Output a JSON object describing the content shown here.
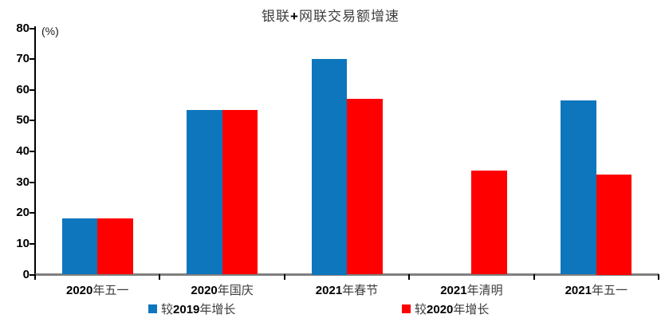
{
  "chart_data": {
    "type": "bar",
    "title": "银联+网联交易额增速",
    "unit_label": "(%)",
    "categories": [
      "2020年五一",
      "2020年国庆",
      "2021年春节",
      "2021年清明",
      "2021年五一"
    ],
    "series": [
      {
        "name": "较2019年增长",
        "color": "#0E76BD",
        "values": [
          18.2,
          53.4,
          70.0,
          null,
          56.6
        ]
      },
      {
        "name": "较2020年增长",
        "color": "#FF0000",
        "values": [
          18.2,
          53.4,
          57.2,
          33.9,
          32.5
        ]
      }
    ],
    "ylabel": "",
    "xlabel": "",
    "ylim": [
      0,
      80
    ],
    "ytick_step": 10,
    "yticks": [
      0,
      10,
      20,
      30,
      40,
      50,
      60,
      70,
      80
    ],
    "grid": false,
    "legend_position": "bottom",
    "colors": {
      "x_axis": "#7F7F7F",
      "y_axis": "#000000",
      "text": "#3C3C3C",
      "background": "#FFFFFF"
    }
  }
}
